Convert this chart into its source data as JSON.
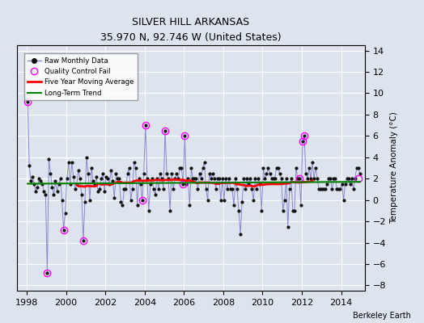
{
  "title": "SILVER HILL ARKANSAS",
  "subtitle": "35.970 N, 92.746 W (United States)",
  "ylabel": "Temperature Anomaly (°C)",
  "credit": "Berkeley Earth",
  "xlim": [
    1997.5,
    2015.2
  ],
  "ylim": [
    -8.5,
    14.5
  ],
  "yticks": [
    -8,
    -6,
    -4,
    -2,
    0,
    2,
    4,
    6,
    8,
    10,
    12,
    14
  ],
  "xticks": [
    1998,
    2000,
    2002,
    2004,
    2006,
    2008,
    2010,
    2012,
    2014
  ],
  "bg_color": "#dde4ee",
  "grid_color": "white",
  "line_color": "#8888cc",
  "dot_color": "#111111",
  "ma_color": "red",
  "trend_color": "green",
  "qc_color": "magenta",
  "raw_data": {
    "times": [
      1998.042,
      1998.125,
      1998.208,
      1998.292,
      1998.375,
      1998.458,
      1998.542,
      1998.625,
      1998.708,
      1998.792,
      1998.875,
      1998.958,
      1999.042,
      1999.125,
      1999.208,
      1999.292,
      1999.375,
      1999.458,
      1999.542,
      1999.625,
      1999.708,
      1999.792,
      1999.875,
      1999.958,
      2000.042,
      2000.125,
      2000.208,
      2000.292,
      2000.375,
      2000.458,
      2000.542,
      2000.625,
      2000.708,
      2000.792,
      2000.875,
      2000.958,
      2001.042,
      2001.125,
      2001.208,
      2001.292,
      2001.375,
      2001.458,
      2001.542,
      2001.625,
      2001.708,
      2001.792,
      2001.875,
      2001.958,
      2002.042,
      2002.125,
      2002.208,
      2002.292,
      2002.375,
      2002.458,
      2002.542,
      2002.625,
      2002.708,
      2002.792,
      2002.875,
      2002.958,
      2003.042,
      2003.125,
      2003.208,
      2003.292,
      2003.375,
      2003.458,
      2003.542,
      2003.625,
      2003.708,
      2003.792,
      2003.875,
      2003.958,
      2004.042,
      2004.125,
      2004.208,
      2004.292,
      2004.375,
      2004.458,
      2004.542,
      2004.625,
      2004.708,
      2004.792,
      2004.875,
      2004.958,
      2005.042,
      2005.125,
      2005.208,
      2005.292,
      2005.375,
      2005.458,
      2005.542,
      2005.625,
      2005.708,
      2005.792,
      2005.875,
      2005.958,
      2006.042,
      2006.125,
      2006.208,
      2006.292,
      2006.375,
      2006.458,
      2006.542,
      2006.625,
      2006.708,
      2006.792,
      2006.875,
      2006.958,
      2007.042,
      2007.125,
      2007.208,
      2007.292,
      2007.375,
      2007.458,
      2007.542,
      2007.625,
      2007.708,
      2007.792,
      2007.875,
      2007.958,
      2008.042,
      2008.125,
      2008.208,
      2008.292,
      2008.375,
      2008.458,
      2008.542,
      2008.625,
      2008.708,
      2008.792,
      2008.875,
      2008.958,
      2009.042,
      2009.125,
      2009.208,
      2009.292,
      2009.375,
      2009.458,
      2009.542,
      2009.625,
      2009.708,
      2009.792,
      2009.875,
      2009.958,
      2010.042,
      2010.125,
      2010.208,
      2010.292,
      2010.375,
      2010.458,
      2010.542,
      2010.625,
      2010.708,
      2010.792,
      2010.875,
      2010.958,
      2011.042,
      2011.125,
      2011.208,
      2011.292,
      2011.375,
      2011.458,
      2011.542,
      2011.625,
      2011.708,
      2011.792,
      2011.875,
      2011.958,
      2012.042,
      2012.125,
      2012.208,
      2012.292,
      2012.375,
      2012.458,
      2012.542,
      2012.625,
      2012.708,
      2012.792,
      2012.875,
      2012.958,
      2013.042,
      2013.125,
      2013.208,
      2013.292,
      2013.375,
      2013.458,
      2013.542,
      2013.625,
      2013.708,
      2013.792,
      2013.875,
      2013.958,
      2014.042,
      2014.125,
      2014.208,
      2014.292,
      2014.375,
      2014.458,
      2014.542,
      2014.625,
      2014.708,
      2014.792,
      2014.875,
      2014.958
    ],
    "values": [
      9.2,
      3.2,
      1.8,
      2.2,
      1.5,
      0.8,
      1.2,
      2.0,
      1.8,
      1.5,
      0.8,
      0.5,
      -6.8,
      3.8,
      2.5,
      1.2,
      0.5,
      1.8,
      0.8,
      1.5,
      2.0,
      0.0,
      -2.8,
      -1.2,
      2.0,
      3.5,
      1.5,
      3.5,
      2.2,
      1.0,
      1.5,
      2.8,
      2.0,
      0.5,
      -3.8,
      -0.2,
      4.0,
      2.5,
      0.0,
      3.0,
      1.8,
      1.5,
      2.2,
      0.8,
      1.0,
      2.0,
      2.5,
      0.8,
      2.2,
      2.0,
      1.5,
      2.8,
      1.8,
      0.2,
      2.5,
      2.0,
      2.0,
      -0.2,
      -0.5,
      1.0,
      1.0,
      2.5,
      3.0,
      0.0,
      1.0,
      3.5,
      3.0,
      -0.5,
      2.0,
      1.5,
      0.0,
      2.5,
      7.0,
      2.0,
      -1.0,
      1.5,
      2.0,
      1.0,
      0.5,
      2.0,
      1.0,
      2.5,
      2.0,
      1.0,
      6.5,
      2.5,
      2.0,
      -1.0,
      2.5,
      1.0,
      2.0,
      2.5,
      2.0,
      3.0,
      3.0,
      1.5,
      6.0,
      1.5,
      2.0,
      -0.5,
      3.0,
      2.0,
      2.0,
      2.0,
      1.0,
      2.5,
      2.0,
      3.0,
      3.5,
      1.0,
      0.0,
      2.5,
      2.0,
      2.5,
      2.0,
      1.0,
      2.0,
      2.0,
      0.0,
      2.0,
      0.0,
      2.0,
      1.0,
      2.0,
      1.0,
      1.0,
      -0.5,
      2.0,
      1.0,
      -1.0,
      -3.2,
      -0.2,
      2.0,
      1.0,
      2.0,
      1.5,
      2.0,
      1.0,
      0.0,
      2.0,
      1.0,
      2.0,
      1.5,
      -1.0,
      3.0,
      2.0,
      2.5,
      3.0,
      2.5,
      2.0,
      2.0,
      2.0,
      3.0,
      3.0,
      2.5,
      2.0,
      -1.0,
      0.0,
      2.0,
      -2.5,
      1.0,
      2.0,
      -1.0,
      -1.0,
      3.0,
      2.0,
      2.0,
      -0.5,
      5.5,
      6.0,
      2.5,
      2.0,
      3.0,
      2.0,
      3.5,
      2.0,
      3.0,
      2.0,
      1.0,
      1.0,
      1.0,
      1.0,
      1.0,
      1.5,
      2.0,
      2.0,
      1.0,
      2.0,
      2.0,
      1.0,
      1.0,
      1.0,
      1.5,
      0.0,
      1.5,
      2.0,
      2.0,
      1.5,
      2.0,
      1.0,
      2.0,
      3.0,
      3.0,
      2.5
    ]
  },
  "qc_points": {
    "times": [
      1998.042,
      1999.042,
      1999.875,
      2000.875,
      2003.875,
      2004.042,
      2005.042,
      2005.958,
      2006.042,
      2011.875,
      2012.042,
      2012.125,
      2014.875
    ],
    "values": [
      9.2,
      -6.8,
      -2.8,
      -3.8,
      0.0,
      7.0,
      6.5,
      1.5,
      6.0,
      2.0,
      5.5,
      6.0,
      2.0
    ]
  },
  "moving_avg": {
    "times": [
      1998.5,
      1999.0,
      1999.5,
      2000.0,
      2000.5,
      2001.0,
      2001.5,
      2002.0,
      2002.5,
      2003.0,
      2003.5,
      2004.0,
      2004.5,
      2005.0,
      2005.5,
      2006.0,
      2006.5,
      2007.0,
      2007.5,
      2008.0,
      2008.5,
      2009.0,
      2009.5,
      2010.0,
      2010.5,
      2011.0,
      2011.5,
      2012.0,
      2012.5,
      2013.0,
      2013.5,
      2014.0,
      2014.5
    ],
    "values": [
      1.5,
      0.8,
      0.5,
      0.8,
      1.0,
      0.5,
      0.8,
      1.0,
      0.9,
      0.7,
      0.5,
      0.8,
      1.0,
      1.1,
      1.2,
      1.2,
      1.2,
      1.3,
      1.3,
      1.3,
      1.2,
      1.3,
      1.4,
      1.5,
      1.5,
      1.5,
      1.5,
      1.5,
      1.5,
      1.5,
      1.5,
      1.5,
      1.5
    ]
  }
}
